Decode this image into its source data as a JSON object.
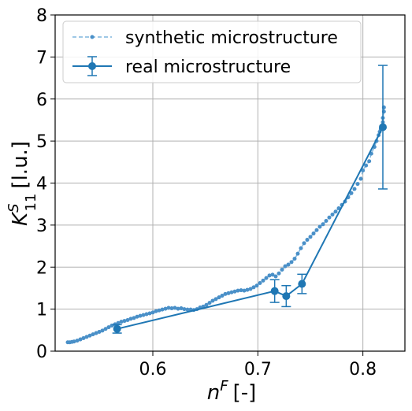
{
  "chart_data": {
    "type": "scatter",
    "xlabel_base": "n",
    "xlabel_sup": "F",
    "xlabel_unit": "[-]",
    "ylabel_base": "K",
    "ylabel_sup": "S",
    "ylabel_sub": "11",
    "ylabel_unit": "[l.u.]",
    "xlim": [
      0.507,
      0.84
    ],
    "ylim": [
      0,
      8
    ],
    "xticks": [
      0.6,
      0.7,
      0.8
    ],
    "xtick_labels": [
      "0.6",
      "0.7",
      "0.8"
    ],
    "yticks": [
      0,
      1,
      2,
      3,
      4,
      5,
      6,
      7,
      8
    ],
    "ytick_labels": [
      "0",
      "1",
      "2",
      "3",
      "4",
      "5",
      "6",
      "7",
      "8"
    ],
    "grid": true,
    "legend_position": "top-left",
    "colors": {
      "synthetic": "#4a90c8",
      "synthetic_dash": "#7eb5dd",
      "real": "#1f77b4"
    },
    "series": [
      {
        "name": "synthetic microstructure",
        "style": "dashed line with small markers",
        "x": [
          0.519,
          0.521,
          0.523,
          0.525,
          0.528,
          0.531,
          0.534,
          0.537,
          0.54,
          0.543,
          0.546,
          0.549,
          0.552,
          0.555,
          0.558,
          0.561,
          0.564,
          0.567,
          0.57,
          0.573,
          0.576,
          0.579,
          0.582,
          0.585,
          0.588,
          0.591,
          0.594,
          0.597,
          0.6,
          0.603,
          0.606,
          0.609,
          0.612,
          0.615,
          0.618,
          0.621,
          0.624,
          0.627,
          0.63,
          0.633,
          0.636,
          0.639,
          0.642,
          0.645,
          0.648,
          0.651,
          0.654,
          0.657,
          0.66,
          0.663,
          0.666,
          0.669,
          0.672,
          0.675,
          0.678,
          0.681,
          0.684,
          0.687,
          0.69,
          0.693,
          0.696,
          0.699,
          0.702,
          0.705,
          0.708,
          0.711,
          0.714,
          0.717,
          0.72,
          0.723,
          0.726,
          0.729,
          0.732,
          0.735,
          0.738,
          0.741,
          0.744,
          0.747,
          0.75,
          0.753,
          0.756,
          0.759,
          0.762,
          0.765,
          0.768,
          0.771,
          0.774,
          0.777,
          0.78,
          0.783,
          0.786,
          0.789,
          0.792,
          0.795,
          0.798,
          0.8,
          0.803,
          0.806,
          0.808,
          0.811,
          0.813,
          0.815,
          0.816,
          0.817,
          0.818,
          0.819,
          0.819,
          0.82,
          0.82
        ],
        "y": [
          0.21,
          0.21,
          0.22,
          0.23,
          0.25,
          0.28,
          0.31,
          0.34,
          0.37,
          0.4,
          0.43,
          0.46,
          0.49,
          0.53,
          0.57,
          0.61,
          0.64,
          0.67,
          0.7,
          0.72,
          0.74,
          0.77,
          0.79,
          0.82,
          0.84,
          0.86,
          0.88,
          0.9,
          0.92,
          0.95,
          0.97,
          0.99,
          1.01,
          1.03,
          1.02,
          1.03,
          1.01,
          1.02,
          1.0,
          0.99,
          0.99,
          0.98,
          1.0,
          1.04,
          1.06,
          1.1,
          1.15,
          1.2,
          1.24,
          1.28,
          1.32,
          1.36,
          1.38,
          1.4,
          1.42,
          1.44,
          1.45,
          1.44,
          1.46,
          1.48,
          1.52,
          1.56,
          1.62,
          1.68,
          1.74,
          1.8,
          1.82,
          1.78,
          1.85,
          1.94,
          2.02,
          2.06,
          2.12,
          2.2,
          2.32,
          2.45,
          2.57,
          2.65,
          2.72,
          2.8,
          2.88,
          2.96,
          3.02,
          3.1,
          3.18,
          3.25,
          3.32,
          3.4,
          3.48,
          3.56,
          3.66,
          3.76,
          3.86,
          3.98,
          4.1,
          4.3,
          4.42,
          4.52,
          4.7,
          4.86,
          5.0,
          5.14,
          5.22,
          5.28,
          5.34,
          5.45,
          5.55,
          5.7,
          5.8
        ]
      },
      {
        "name": "real microstructure",
        "style": "solid line with circle markers and error bars",
        "x": [
          0.566,
          0.716,
          0.727,
          0.742,
          0.819
        ],
        "y": [
          0.53,
          1.43,
          1.31,
          1.6,
          5.33
        ],
        "err": [
          0.1,
          0.27,
          0.25,
          0.23,
          1.47
        ]
      }
    ]
  }
}
